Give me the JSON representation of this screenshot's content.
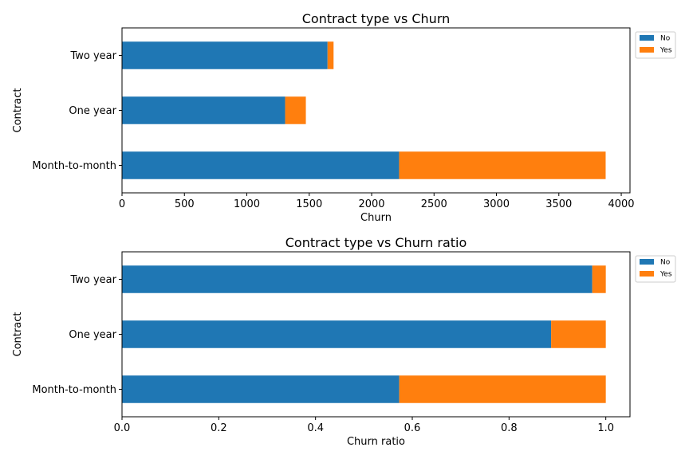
{
  "chart_data": [
    {
      "type": "bar",
      "orientation": "horizontal",
      "stacked": true,
      "title": "Contract type vs Churn",
      "xlabel": "Churn",
      "ylabel": "Contract",
      "categories": [
        "Month-to-month",
        "One year",
        "Two year"
      ],
      "series": [
        {
          "name": "No",
          "values": [
            2220,
            1307,
            1647
          ],
          "color": "#1f77b4"
        },
        {
          "name": "Yes",
          "values": [
            1655,
            166,
            48
          ],
          "color": "#ff7f0e"
        }
      ],
      "xlim": [
        0,
        4070
      ],
      "xticks": [
        0,
        500,
        1000,
        1500,
        2000,
        2500,
        3000,
        3500,
        4000
      ],
      "xtick_labels": [
        "0",
        "500",
        "1000",
        "1500",
        "2000",
        "2500",
        "3000",
        "3500",
        "4000"
      ],
      "legend": "outside-top-right",
      "grid": false
    },
    {
      "type": "bar",
      "orientation": "horizontal",
      "stacked": true,
      "title": "Contract type vs Churn ratio",
      "xlabel": "Churn ratio",
      "ylabel": "Contract",
      "categories": [
        "Month-to-month",
        "One year",
        "Two year"
      ],
      "series": [
        {
          "name": "No",
          "values": [
            0.573,
            0.887,
            0.972
          ],
          "color": "#1f77b4"
        },
        {
          "name": "Yes",
          "values": [
            0.427,
            0.113,
            0.028
          ],
          "color": "#ff7f0e"
        }
      ],
      "xlim": [
        0,
        1.05
      ],
      "xticks": [
        0,
        0.2,
        0.4,
        0.6,
        0.8,
        1.0
      ],
      "xtick_labels": [
        "0.0",
        "0.2",
        "0.4",
        "0.6",
        "0.8",
        "1.0"
      ],
      "legend": "outside-top-right",
      "grid": false
    }
  ]
}
